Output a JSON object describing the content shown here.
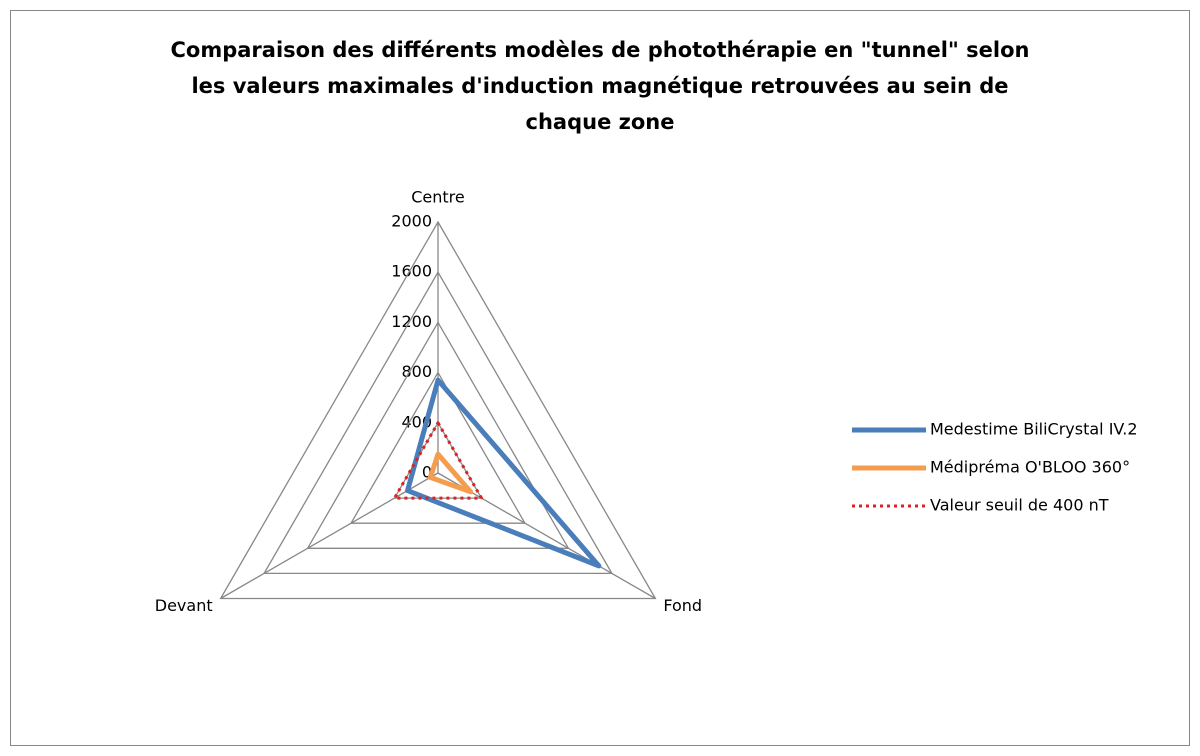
{
  "chart_data": {
    "type": "radar",
    "title": [
      "Comparaison des différents modèles de photothérapie en \"tunnel\" selon",
      "les valeurs maximales d'induction magnétique retrouvées au sein de",
      "chaque zone"
    ],
    "categories": [
      "Centre",
      "Fond",
      "Devant"
    ],
    "series": [
      {
        "name": "Medestime BiliCrystal IV.2",
        "color": "#4a7ebb",
        "dash": "solid",
        "values": [
          740,
          1480,
          280
        ]
      },
      {
        "name": "Médipréma O'BLOO 360°",
        "color": "#f59d4e",
        "dash": "solid",
        "values": [
          150,
          300,
          70
        ]
      },
      {
        "name": "Valeur seuil de 400 nT",
        "color": "#e02020",
        "dash": "dotted",
        "values": [
          400,
          400,
          400
        ]
      }
    ],
    "ylim": [
      0,
      2000
    ],
    "yticks": [
      0,
      400,
      800,
      1200,
      1600,
      2000
    ],
    "grid": true,
    "legend": "right"
  }
}
